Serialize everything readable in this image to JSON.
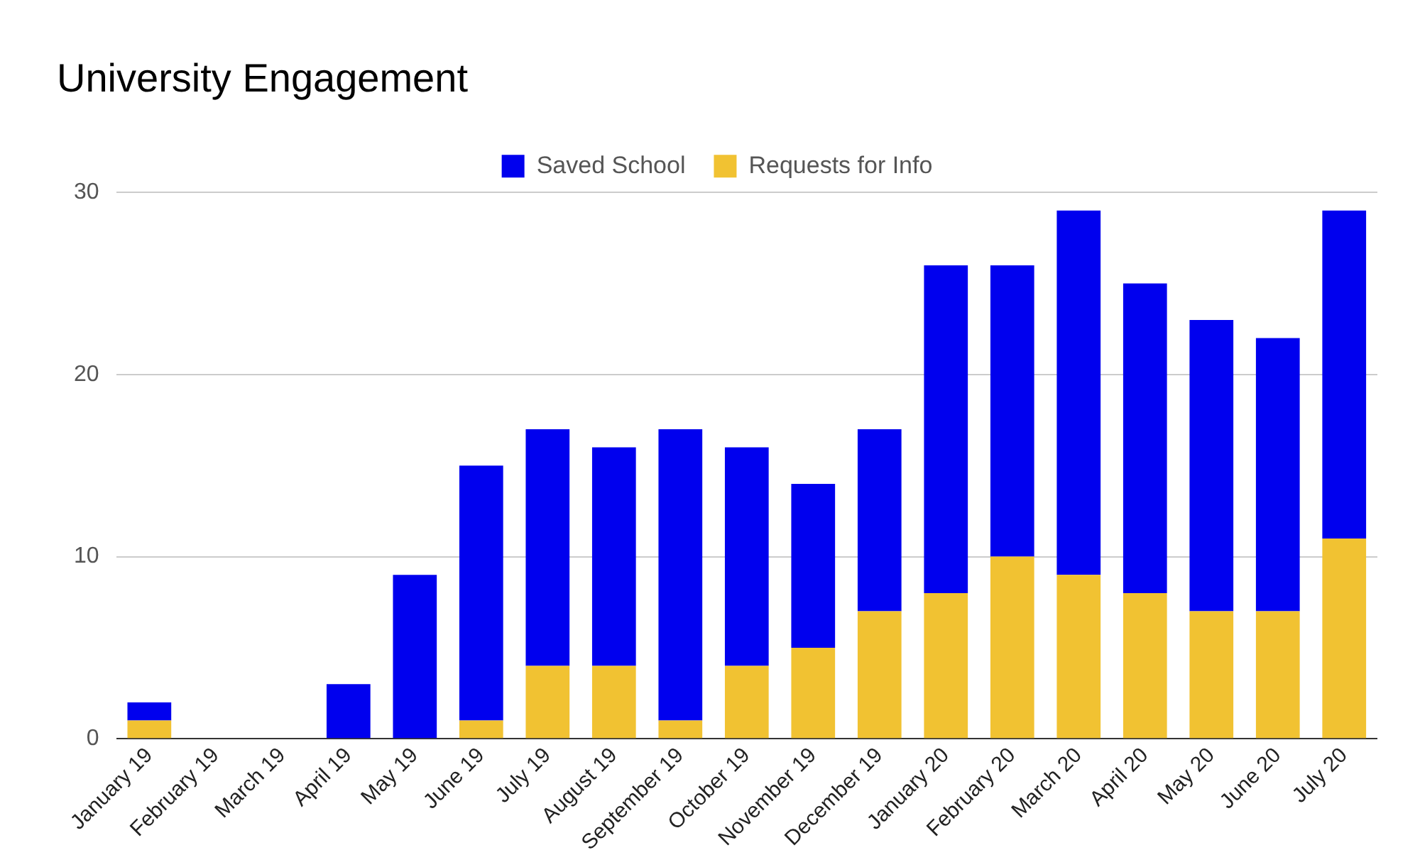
{
  "chart_data": {
    "type": "bar",
    "title": "University Engagement",
    "stacked": true,
    "legend": "top",
    "grid": "y",
    "categories": [
      "January 19",
      "February 19",
      "March 19",
      "April 19",
      "May 19",
      "June 19",
      "July 19",
      "August 19",
      "September 19",
      "October 19",
      "November 19",
      "December 19",
      "January 20",
      "February 20",
      "March 20",
      "April 20",
      "May 20",
      "June 20",
      "July 20"
    ],
    "series": [
      {
        "name": "Requests for Info",
        "color": "#f1c232",
        "values": [
          1,
          0,
          0,
          0,
          0,
          1,
          4,
          4,
          1,
          4,
          5,
          7,
          8,
          10,
          9,
          8,
          7,
          7,
          11
        ]
      },
      {
        "name": "Saved School",
        "color": "#0000ee",
        "values": [
          1,
          0,
          0,
          3,
          9,
          14,
          13,
          12,
          16,
          12,
          9,
          10,
          18,
          16,
          20,
          17,
          16,
          15,
          18
        ]
      }
    ],
    "ylim": [
      0,
      30
    ],
    "yticks": [
      0,
      10,
      20,
      30
    ]
  }
}
